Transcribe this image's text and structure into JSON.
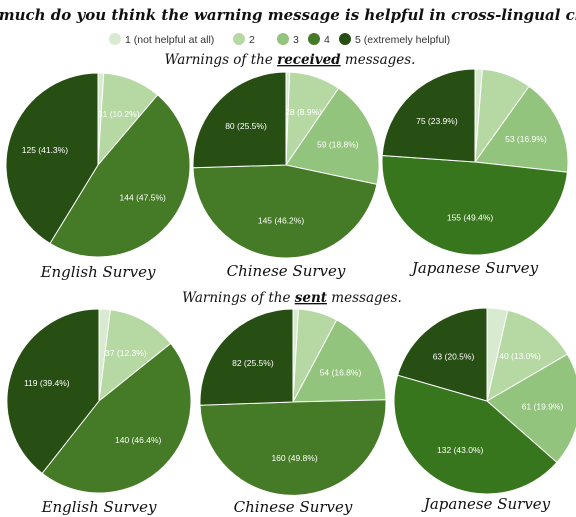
{
  "title": "How much do you think the warning message is helpful in cross-lingual chats?",
  "colors": {
    "1": "#d8ebd0",
    "2": "#b6d9a4",
    "3": "#93c47d",
    "4": "#457a27",
    "5": "#274e13",
    "large_slice_alt": "#38761d",
    "label_light_bg": "#ffffff",
    "label_dark_text": "#ffffff"
  },
  "legend": [
    {
      "key": "1",
      "label": "1 (not helpful at all)"
    },
    {
      "key": "2",
      "label": "2"
    },
    {
      "key": "3",
      "label": "3"
    },
    {
      "key": "4",
      "label": "4"
    },
    {
      "key": "5",
      "label": "5 (extremely helpful)"
    }
  ],
  "sections": {
    "received": {
      "before": "Warnings of the ",
      "emph": "received",
      "after": " messages."
    },
    "sent": {
      "before": "Warnings of the ",
      "emph": "sent",
      "after": " messages."
    }
  },
  "chart_data": [
    {
      "type": "pie",
      "group": "received",
      "title": "English Survey",
      "slices": [
        {
          "key": "1",
          "value": 3,
          "label": ""
        },
        {
          "key": "2",
          "value": 31,
          "label": "31 (10.2%)"
        },
        {
          "key": "3",
          "value": 0,
          "label": ""
        },
        {
          "key": "4",
          "value": 144,
          "label": "144 (47.5%)"
        },
        {
          "key": "5",
          "value": 125,
          "label": "125 (41.3%)"
        }
      ]
    },
    {
      "type": "pie",
      "group": "received",
      "title": "Chinese Survey",
      "slices": [
        {
          "key": "1",
          "value": 2,
          "label": ""
        },
        {
          "key": "2",
          "value": 28,
          "label": "28 (8.9%)"
        },
        {
          "key": "3",
          "value": 59,
          "label": "59 (18.8%)"
        },
        {
          "key": "4",
          "value": 145,
          "label": "145 (46.2%)"
        },
        {
          "key": "5",
          "value": 80,
          "label": "80 (25.5%)"
        }
      ]
    },
    {
      "type": "pie",
      "group": "received",
      "title": "Japanese Survey",
      "slices": [
        {
          "key": "1",
          "value": 4,
          "label": ""
        },
        {
          "key": "2",
          "value": 27,
          "label": ""
        },
        {
          "key": "3",
          "value": 53,
          "label": "53 (16.9%)"
        },
        {
          "key": "4",
          "value": 155,
          "label": "155 (49.4%)"
        },
        {
          "key": "5",
          "value": 75,
          "label": "75 (23.9%)"
        }
      ]
    },
    {
      "type": "pie",
      "group": "sent",
      "title": "English Survey",
      "slices": [
        {
          "key": "1",
          "value": 6,
          "label": ""
        },
        {
          "key": "2",
          "value": 37,
          "label": "37 (12.3%)"
        },
        {
          "key": "3",
          "value": 0,
          "label": ""
        },
        {
          "key": "4",
          "value": 140,
          "label": "140 (46.4%)"
        },
        {
          "key": "5",
          "value": 119,
          "label": "119 (39.4%)"
        }
      ]
    },
    {
      "type": "pie",
      "group": "sent",
      "title": "Chinese Survey",
      "slices": [
        {
          "key": "1",
          "value": 3,
          "label": ""
        },
        {
          "key": "2",
          "value": 22,
          "label": ""
        },
        {
          "key": "3",
          "value": 54,
          "label": "54 (16.8%)"
        },
        {
          "key": "4",
          "value": 160,
          "label": "160 (49.8%)"
        },
        {
          "key": "5",
          "value": 82,
          "label": "82 (25.5%)"
        }
      ]
    },
    {
      "type": "pie",
      "group": "sent",
      "title": "Japanese Survey",
      "slices": [
        {
          "key": "1",
          "value": 11,
          "label": ""
        },
        {
          "key": "2",
          "value": 40,
          "label": "40 (13.0%)"
        },
        {
          "key": "3",
          "value": 61,
          "label": "61 (19.9%)"
        },
        {
          "key": "4",
          "value": 132,
          "label": "132 (43.0%)"
        },
        {
          "key": "5",
          "value": 63,
          "label": "63 (20.5%)"
        }
      ]
    }
  ]
}
